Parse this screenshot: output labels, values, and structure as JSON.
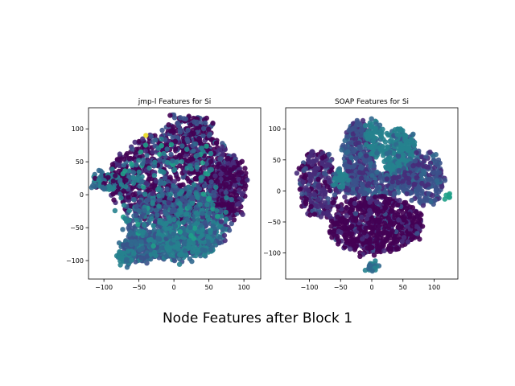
{
  "figure": {
    "suptitle": "Node Features after Block 1"
  },
  "palette": {
    "dark": "#440154",
    "purple": "#472c7a",
    "indigo": "#3b528b",
    "blue": "#31688e",
    "teal": "#26828e",
    "green": "#1fa088",
    "yellow": "#e7d81f"
  },
  "chart_data": [
    {
      "type": "scatter",
      "title": "jmp-l Features for Si",
      "xlim": [
        -122,
        124
      ],
      "ylim": [
        -128,
        132
      ],
      "xticks": [
        -100,
        -50,
        0,
        50,
        100
      ],
      "yticks": [
        -100,
        -50,
        0,
        50,
        100
      ],
      "grid": false,
      "clusters": [
        {
          "name": "body-upper",
          "shape": "ellipse",
          "cx": 5,
          "cy": 25,
          "rx": 95,
          "ry": 70,
          "n": 1100,
          "mix": {
            "dark": 0.55,
            "purple": 0.25,
            "indigo": 0.15,
            "blue": 0.05
          }
        },
        {
          "name": "body-lower",
          "shape": "ellipse",
          "cx": 5,
          "cy": -45,
          "rx": 75,
          "ry": 55,
          "n": 650,
          "mix": {
            "indigo": 0.35,
            "blue": 0.3,
            "teal": 0.25,
            "purple": 0.1
          }
        },
        {
          "name": "lower-left",
          "shape": "ellipse",
          "cx": -45,
          "cy": -80,
          "rx": 30,
          "ry": 22,
          "n": 220,
          "mix": {
            "indigo": 0.5,
            "blue": 0.3,
            "teal": 0.2
          }
        },
        {
          "name": "bottom-teal",
          "shape": "ellipse",
          "cx": 15,
          "cy": -70,
          "rx": 45,
          "ry": 25,
          "n": 260,
          "mix": {
            "teal": 0.6,
            "blue": 0.3,
            "indigo": 0.1
          }
        },
        {
          "name": "left-arm",
          "shape": "ellipse",
          "cx": -90,
          "cy": 20,
          "rx": 25,
          "ry": 15,
          "n": 120,
          "mix": {
            "teal": 0.4,
            "blue": 0.3,
            "dark": 0.3
          }
        },
        {
          "name": "top-cap",
          "shape": "ellipse",
          "cx": 20,
          "cy": 100,
          "rx": 35,
          "ry": 22,
          "n": 130,
          "mix": {
            "dark": 0.6,
            "indigo": 0.4
          }
        },
        {
          "name": "right-edge",
          "shape": "ellipse",
          "cx": 80,
          "cy": 10,
          "rx": 25,
          "ry": 45,
          "n": 200,
          "mix": {
            "dark": 0.6,
            "purple": 0.3,
            "indigo": 0.1
          }
        },
        {
          "name": "left-bottom-teal",
          "shape": "ellipse",
          "cx": -70,
          "cy": -95,
          "rx": 12,
          "ry": 10,
          "n": 40,
          "mix": {
            "teal": 0.8,
            "blue": 0.2
          }
        },
        {
          "name": "scattered-teal",
          "shape": "ellipse",
          "cx": 0,
          "cy": 0,
          "rx": 85,
          "ry": 85,
          "n": 160,
          "mix": {
            "teal": 0.6,
            "green": 0.2,
            "blue": 0.2
          }
        },
        {
          "name": "outlier",
          "shape": "point",
          "cx": -40,
          "cy": 90,
          "n": 1,
          "mix": {
            "yellow": 1
          }
        }
      ]
    },
    {
      "type": "scatter",
      "title": "SOAP Features for Si",
      "xlim": [
        -138,
        138
      ],
      "ylim": [
        -142,
        134
      ],
      "xticks": [
        -100,
        -50,
        0,
        50,
        100
      ],
      "yticks": [
        -100,
        -50,
        0,
        50,
        100
      ],
      "grid": false,
      "clusters": [
        {
          "name": "upper-left-band",
          "shape": "ellipse",
          "cx": -20,
          "cy": 55,
          "rx": 25,
          "ry": 55,
          "n": 340,
          "mix": {
            "indigo": 0.55,
            "purple": 0.3,
            "blue": 0.15
          }
        },
        {
          "name": "left-lobe",
          "shape": "ellipse",
          "cx": -85,
          "cy": 10,
          "rx": 30,
          "ry": 55,
          "n": 280,
          "mix": {
            "purple": 0.45,
            "dark": 0.35,
            "indigo": 0.2
          }
        },
        {
          "name": "teal-top",
          "shape": "ellipse",
          "cx": 5,
          "cy": 85,
          "rx": 15,
          "ry": 30,
          "n": 90,
          "mix": {
            "teal": 0.8,
            "blue": 0.2
          }
        },
        {
          "name": "teal-right",
          "shape": "ellipse",
          "cx": 45,
          "cy": 55,
          "rx": 25,
          "ry": 45,
          "n": 280,
          "mix": {
            "teal": 0.7,
            "blue": 0.2,
            "indigo": 0.1
          }
        },
        {
          "name": "right-arm",
          "shape": "ellipse",
          "cx": 85,
          "cy": 20,
          "rx": 30,
          "ry": 45,
          "n": 220,
          "mix": {
            "indigo": 0.6,
            "purple": 0.25,
            "blue": 0.15
          }
        },
        {
          "name": "center-blob",
          "shape": "ellipse",
          "cx": 10,
          "cy": 10,
          "rx": 70,
          "ry": 20,
          "n": 260,
          "mix": {
            "indigo": 0.5,
            "purple": 0.3,
            "blue": 0.2
          }
        },
        {
          "name": "lower-body",
          "shape": "ellipse",
          "cx": 5,
          "cy": -55,
          "rx": 75,
          "ry": 45,
          "n": 750,
          "mix": {
            "dark": 0.7,
            "purple": 0.25,
            "indigo": 0.05
          }
        },
        {
          "name": "bottom-island",
          "shape": "ellipse",
          "cx": 0,
          "cy": -123,
          "rx": 8,
          "ry": 6,
          "n": 25,
          "mix": {
            "teal": 0.7,
            "blue": 0.3
          }
        },
        {
          "name": "left-teal",
          "shape": "ellipse",
          "cx": -50,
          "cy": 20,
          "rx": 10,
          "ry": 12,
          "n": 30,
          "mix": {
            "teal": 0.9,
            "blue": 0.1
          }
        },
        {
          "name": "far-right-teal",
          "shape": "ellipse",
          "cx": 122,
          "cy": -8,
          "rx": 4,
          "ry": 4,
          "n": 6,
          "mix": {
            "green": 1
          }
        }
      ]
    }
  ]
}
